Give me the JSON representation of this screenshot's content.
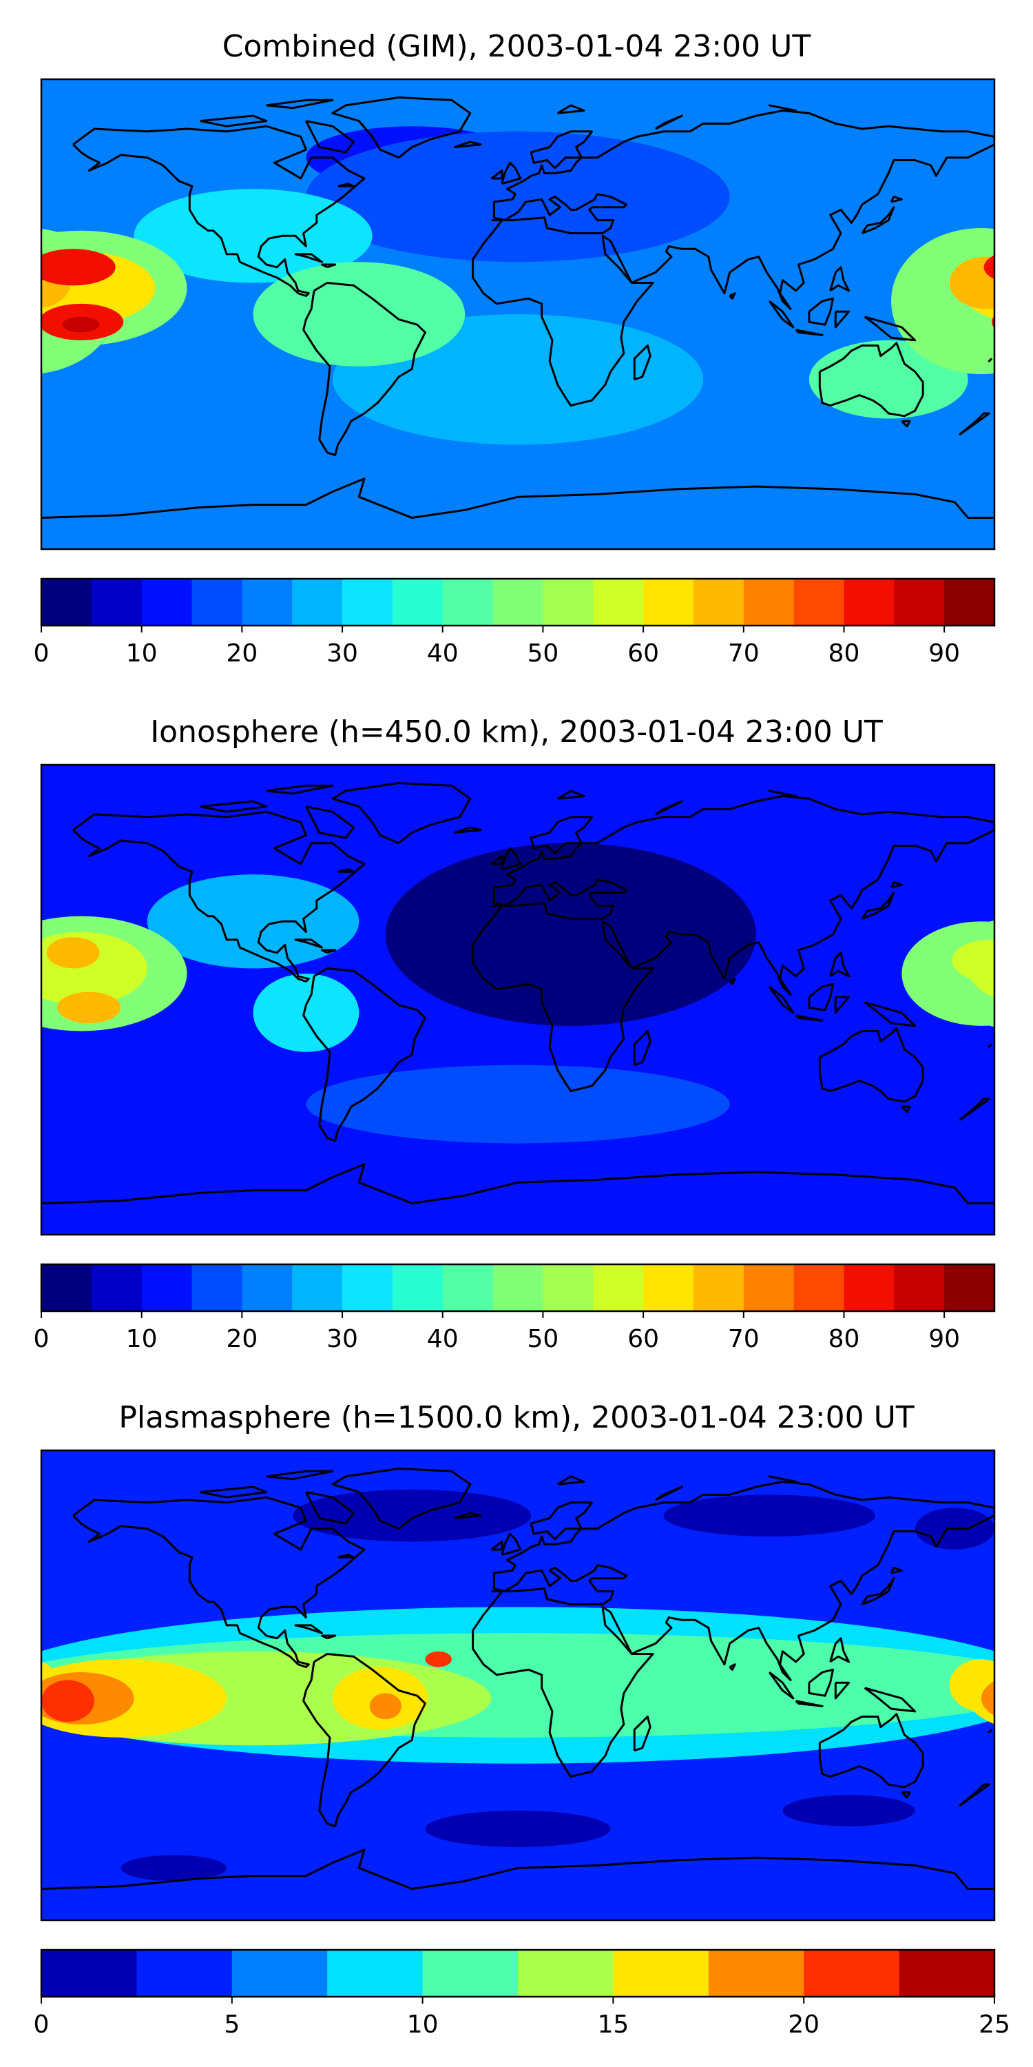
{
  "colors": {
    "jet19": [
      "#00007f",
      "#0000c6",
      "#0010ff",
      "#004cff",
      "#0080ff",
      "#00b4ff",
      "#0de5ff",
      "#27ffd0",
      "#53ffa4",
      "#81ff76",
      "#a4ff53",
      "#d0ff27",
      "#ffe500",
      "#ffb900",
      "#ff8200",
      "#ff4a00",
      "#f20f00",
      "#c60000",
      "#8b0000"
    ],
    "jet10": [
      "#0000b2",
      "#0020ff",
      "#0080ff",
      "#00e0ff",
      "#4dffaa",
      "#aaff4d",
      "#ffe600",
      "#ff8a00",
      "#ff3000",
      "#b00000"
    ],
    "coast": "#000000"
  },
  "chart_data": [
    {
      "type": "heatmap",
      "title": "Combined (GIM), 2003-01-04 23:00 UT",
      "colorbar": {
        "levels": [
          0,
          5,
          10,
          15,
          20,
          25,
          30,
          35,
          40,
          45,
          50,
          55,
          60,
          65,
          70,
          75,
          80,
          85,
          90,
          95
        ],
        "ticks": [
          0,
          10,
          20,
          30,
          40,
          50,
          60,
          70,
          80,
          90
        ],
        "tick_labels": [
          "0",
          "10",
          "20",
          "30",
          "40",
          "50",
          "60",
          "70",
          "80",
          "90"
        ],
        "range": [
          0,
          95
        ]
      },
      "background_level": 4,
      "blobs": [
        {
          "lon": -165,
          "lat": 10,
          "sx": 40,
          "sy": 22,
          "level": 9
        },
        {
          "lon": -165,
          "lat": 10,
          "sx": 28,
          "sy": 14,
          "level": 12
        },
        {
          "lon": -168,
          "lat": 18,
          "sx": 16,
          "sy": 7,
          "level": 16
        },
        {
          "lon": -165,
          "lat": -3,
          "sx": 16,
          "sy": 7,
          "level": 16
        },
        {
          "lon": -165,
          "lat": -4,
          "sx": 7,
          "sy": 3,
          "level": 17
        },
        {
          "lon": 175,
          "lat": 5,
          "sx": 34,
          "sy": 28,
          "level": 9
        },
        {
          "lon": 177,
          "lat": 12,
          "sx": 14,
          "sy": 10,
          "level": 13
        },
        {
          "lon": -100,
          "lat": 30,
          "sx": 45,
          "sy": 18,
          "level": 6
        },
        {
          "lon": -60,
          "lat": 0,
          "sx": 40,
          "sy": 20,
          "level": 8
        },
        {
          "lon": 140,
          "lat": -25,
          "sx": 30,
          "sy": 15,
          "level": 8
        },
        {
          "lon": 0,
          "lat": -25,
          "sx": 70,
          "sy": 25,
          "level": 5
        },
        {
          "lon": 0,
          "lat": 45,
          "sx": 80,
          "sy": 25,
          "level": 3
        },
        {
          "lon": -40,
          "lat": 60,
          "sx": 40,
          "sy": 12,
          "level": 2
        },
        {
          "lon": 10,
          "lat": -70,
          "sx": 90,
          "sy": 10,
          "level": 4
        }
      ]
    },
    {
      "type": "heatmap",
      "title": "Ionosphere  (h=450.0 km), 2003-01-04 23:00 UT",
      "colorbar": {
        "levels": [
          0,
          5,
          10,
          15,
          20,
          25,
          30,
          35,
          40,
          45,
          50,
          55,
          60,
          65,
          70,
          75,
          80,
          85,
          90,
          95
        ],
        "ticks": [
          0,
          10,
          20,
          30,
          40,
          50,
          60,
          70,
          80,
          90
        ],
        "tick_labels": [
          "0",
          "10",
          "20",
          "30",
          "40",
          "50",
          "60",
          "70",
          "80",
          "90"
        ],
        "range": [
          0,
          95
        ]
      },
      "background_level": 2,
      "blobs": [
        {
          "lon": 20,
          "lat": 25,
          "sx": 70,
          "sy": 35,
          "level": 0
        },
        {
          "lon": -165,
          "lat": 10,
          "sx": 40,
          "sy": 22,
          "level": 9
        },
        {
          "lon": -165,
          "lat": 12,
          "sx": 25,
          "sy": 14,
          "level": 11
        },
        {
          "lon": -168,
          "lat": 18,
          "sx": 10,
          "sy": 6,
          "level": 13
        },
        {
          "lon": -162,
          "lat": -3,
          "sx": 12,
          "sy": 6,
          "level": 13
        },
        {
          "lon": 175,
          "lat": 10,
          "sx": 30,
          "sy": 20,
          "level": 9
        },
        {
          "lon": 178,
          "lat": 15,
          "sx": 14,
          "sy": 8,
          "level": 11
        },
        {
          "lon": -100,
          "lat": 30,
          "sx": 40,
          "sy": 18,
          "level": 5
        },
        {
          "lon": -80,
          "lat": -5,
          "sx": 20,
          "sy": 15,
          "level": 6
        },
        {
          "lon": 0,
          "lat": -40,
          "sx": 80,
          "sy": 15,
          "level": 3
        }
      ]
    },
    {
      "type": "heatmap",
      "title": "Plasmasphere (h=1500.0 km), 2003-01-04 23:00 UT",
      "colorbar": {
        "levels": [
          0,
          2.5,
          5,
          7.5,
          10,
          12.5,
          15,
          17.5,
          20,
          22.5,
          25
        ],
        "ticks": [
          0,
          5,
          10,
          15,
          20,
          25
        ],
        "tick_labels": [
          "0",
          "5",
          "10",
          "15",
          "20",
          "25"
        ],
        "range": [
          0,
          25
        ]
      },
      "background_level": 1,
      "blobs": [
        {
          "lon": 0,
          "lat": 0,
          "sx": 200,
          "sy": 30,
          "level": 3
        },
        {
          "lon": 0,
          "lat": 0,
          "sx": 200,
          "sy": 20,
          "level": 4
        },
        {
          "lon": -100,
          "lat": -5,
          "sx": 90,
          "sy": 18,
          "level": 5
        },
        {
          "lon": -150,
          "lat": -5,
          "sx": 40,
          "sy": 15,
          "level": 6
        },
        {
          "lon": -165,
          "lat": -5,
          "sx": 20,
          "sy": 10,
          "level": 7
        },
        {
          "lon": -170,
          "lat": -6,
          "sx": 10,
          "sy": 8,
          "level": 8
        },
        {
          "lon": -52,
          "lat": -5,
          "sx": 18,
          "sy": 12,
          "level": 6
        },
        {
          "lon": -50,
          "lat": -8,
          "sx": 6,
          "sy": 5,
          "level": 7
        },
        {
          "lon": -30,
          "lat": 10,
          "sx": 5,
          "sy": 3,
          "level": 8
        },
        {
          "lon": 175,
          "lat": 0,
          "sx": 12,
          "sy": 10,
          "level": 6
        },
        {
          "lon": -40,
          "lat": 65,
          "sx": 45,
          "sy": 10,
          "level": 0
        },
        {
          "lon": 95,
          "lat": 65,
          "sx": 40,
          "sy": 8,
          "level": 0
        },
        {
          "lon": 165,
          "lat": 60,
          "sx": 15,
          "sy": 8,
          "level": 0
        },
        {
          "lon": 0,
          "lat": -55,
          "sx": 35,
          "sy": 7,
          "level": 0
        },
        {
          "lon": -130,
          "lat": -70,
          "sx": 20,
          "sy": 5,
          "level": 0
        },
        {
          "lon": 125,
          "lat": -48,
          "sx": 25,
          "sy": 6,
          "level": 0
        }
      ]
    }
  ]
}
